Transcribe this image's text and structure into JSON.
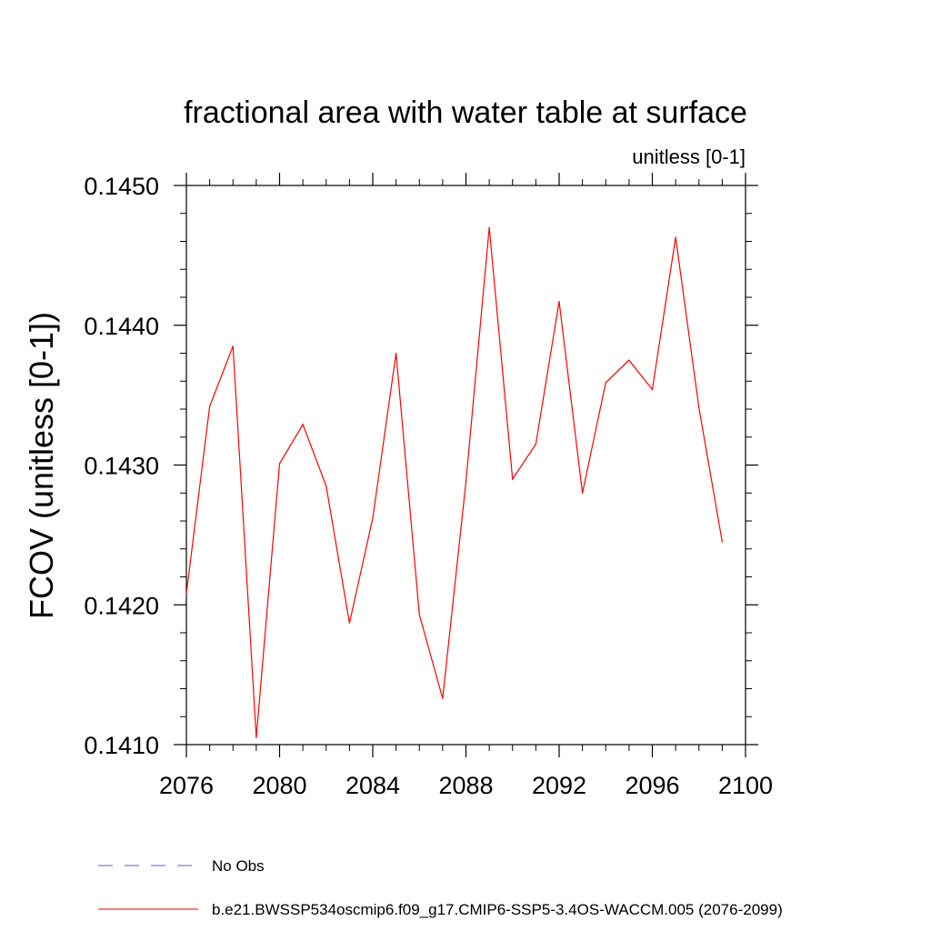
{
  "chart_data": {
    "type": "line",
    "title": "fractional area with water table at surface",
    "units_label": "unitless [0-1]",
    "ylabel": "FCOV  (unitless [0-1])",
    "xlabel": "",
    "xlim": [
      2076,
      2100
    ],
    "ylim": [
      0.141,
      0.145
    ],
    "xticks": [
      2076,
      2080,
      2084,
      2088,
      2092,
      2096,
      2100
    ],
    "xtick_labels": [
      "2076",
      "2080",
      "2084",
      "2088",
      "2092",
      "2096",
      "2100"
    ],
    "xminor_step": 1,
    "yticks": [
      0.141,
      0.142,
      0.143,
      0.144,
      0.145
    ],
    "ytick_labels": [
      "0.1410",
      "0.1420",
      "0.1430",
      "0.1440",
      "0.1450"
    ],
    "yminor_step": 0.0002,
    "grid": false,
    "series": [
      {
        "name": "b.e21.BWSSP534oscmip6.f09_g17.CMIP6-SSP5-3.4OS-WACCM.005 (2076-2099)",
        "color": "#ff0000",
        "style": "solid",
        "x": [
          2076,
          2077,
          2078,
          2079,
          2080,
          2081,
          2082,
          2083,
          2084,
          2085,
          2086,
          2087,
          2088,
          2089,
          2090,
          2091,
          2092,
          2093,
          2094,
          2095,
          2096,
          2097,
          2098,
          2099
        ],
        "values": [
          0.14208,
          0.14342,
          0.14385,
          0.14105,
          0.14301,
          0.14329,
          0.14285,
          0.14187,
          0.14262,
          0.1438,
          0.14193,
          0.14133,
          0.14288,
          0.1447,
          0.1429,
          0.14315,
          0.14417,
          0.1428,
          0.14359,
          0.14375,
          0.14354,
          0.14463,
          0.14341,
          0.14245
        ]
      }
    ],
    "legend": [
      {
        "label": "No Obs",
        "color": "#6a5acd",
        "style": "dashed"
      },
      {
        "label": "b.e21.BWSSP534oscmip6.f09_g17.CMIP6-SSP5-3.4OS-WACCM.005 (2076-2099)",
        "color": "#ff0000",
        "style": "solid"
      }
    ],
    "legend_position": "bottom-left"
  }
}
